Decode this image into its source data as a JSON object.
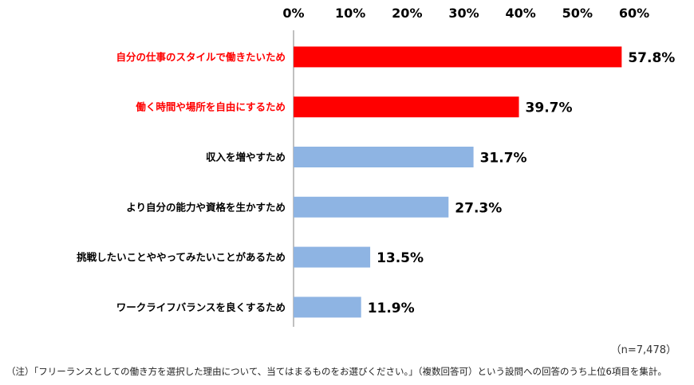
{
  "chart_data": {
    "type": "bar",
    "orientation": "horizontal",
    "categories": [
      "自分の仕事のスタイルで働きたいため",
      "働く時間や場所を自由にするため",
      "収入を増やすため",
      "より自分の能力や資格を生かすため",
      "挑戦したいことややってみたいことがあるため",
      "ワークライフバランスを良くするため"
    ],
    "values": [
      57.8,
      39.7,
      31.7,
      27.3,
      13.5,
      11.9
    ],
    "value_labels": [
      "57.8%",
      "39.7%",
      "31.7%",
      "27.3%",
      "13.5%",
      "11.9%"
    ],
    "highlight": [
      true,
      true,
      false,
      false,
      false,
      false
    ],
    "x_ticks": [
      "0%",
      "10%",
      "20%",
      "30%",
      "40%",
      "50%",
      "60%"
    ],
    "xlim": [
      0,
      60
    ],
    "axis_position": "top",
    "grid": false,
    "title": "",
    "xlabel": "",
    "ylabel": "",
    "colors": {
      "highlight_bar": "#FF0000",
      "normal_bar": "#8EB4E3",
      "highlight_label": "#FF0000",
      "normal_label": "#000000"
    }
  },
  "sample_note": "（n=7,478）",
  "footnote": "（注）「フリーランスとしての働き方を選択した理由について、当てはまるものをお選びください。」（複数回答可）という設問への回答のうち上位6項目を集計。"
}
